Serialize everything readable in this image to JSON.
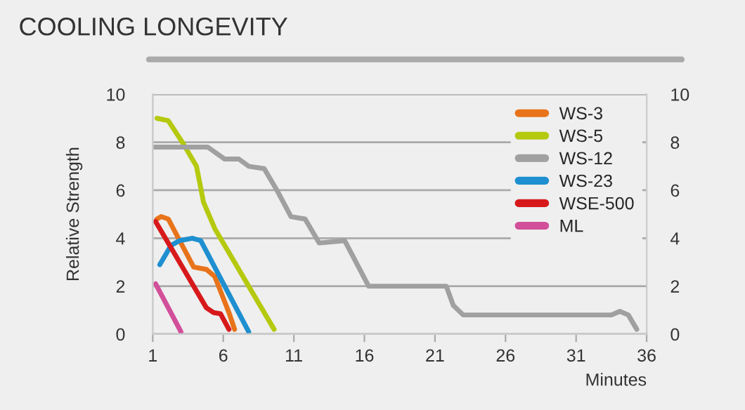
{
  "chart_data": {
    "type": "line",
    "title": "COOLING LONGEVITY",
    "xlabel": "Minutes",
    "ylabel": "Relative Strength",
    "xlim": [
      1,
      36
    ],
    "xticks": [
      1,
      6,
      11,
      16,
      21,
      26,
      31,
      36
    ],
    "ylim": [
      0,
      10
    ],
    "yticks": [
      0,
      2,
      4,
      6,
      8,
      10
    ],
    "y2lim": [
      0,
      10
    ],
    "y2ticks": [
      0,
      2,
      4,
      6,
      8,
      10
    ],
    "grid": "y",
    "legend": "top right",
    "marker": "none",
    "line_style": "solid",
    "series": [
      {
        "name": "WS-3",
        "color": "#e8731a",
        "x": [
          1.3,
          1.6,
          2.1,
          3.9,
          4.8,
          5.4,
          6.4,
          6.8
        ],
        "values": [
          4.8,
          4.9,
          4.8,
          2.8,
          2.7,
          2.4,
          0.9,
          0.2
        ]
      },
      {
        "name": "WS-5",
        "color": "#b5c90f",
        "x": [
          1.3,
          2.1,
          3.1,
          4.1,
          4.6,
          5.4,
          9.6
        ],
        "values": [
          9.0,
          8.9,
          8.0,
          7.0,
          5.5,
          4.4,
          0.2
        ]
      },
      {
        "name": "WS-12",
        "color": "#a0a0a0",
        "x": [
          1.1,
          4.9,
          6.1,
          7.1,
          7.8,
          8.9,
          9.8,
          10.8,
          11.8,
          12.8,
          14.6,
          16.3,
          21.8,
          22.3,
          23,
          26,
          31,
          33.5,
          34.1,
          34.7,
          35.3
        ],
        "values": [
          7.8,
          7.8,
          7.3,
          7.3,
          7.0,
          6.9,
          6.0,
          4.9,
          4.8,
          3.8,
          3.9,
          2.0,
          2.0,
          1.2,
          0.8,
          0.8,
          0.8,
          0.8,
          0.95,
          0.8,
          0.2
        ]
      },
      {
        "name": "WS-23",
        "color": "#1e8fd0",
        "x": [
          1.5,
          2.3,
          2.9,
          3.8,
          4.4,
          7.8
        ],
        "values": [
          2.9,
          3.7,
          3.9,
          4.0,
          3.9,
          0.1
        ]
      },
      {
        "name": "WSE-500",
        "color": "#d7191c",
        "x": [
          1.2,
          4.8,
          5.3,
          5.8,
          6.4
        ],
        "values": [
          4.7,
          1.1,
          0.9,
          0.85,
          0.2
        ]
      },
      {
        "name": "ML",
        "color": "#d24f9a",
        "x": [
          1.2,
          3.0
        ],
        "values": [
          2.1,
          0.1
        ]
      }
    ]
  }
}
